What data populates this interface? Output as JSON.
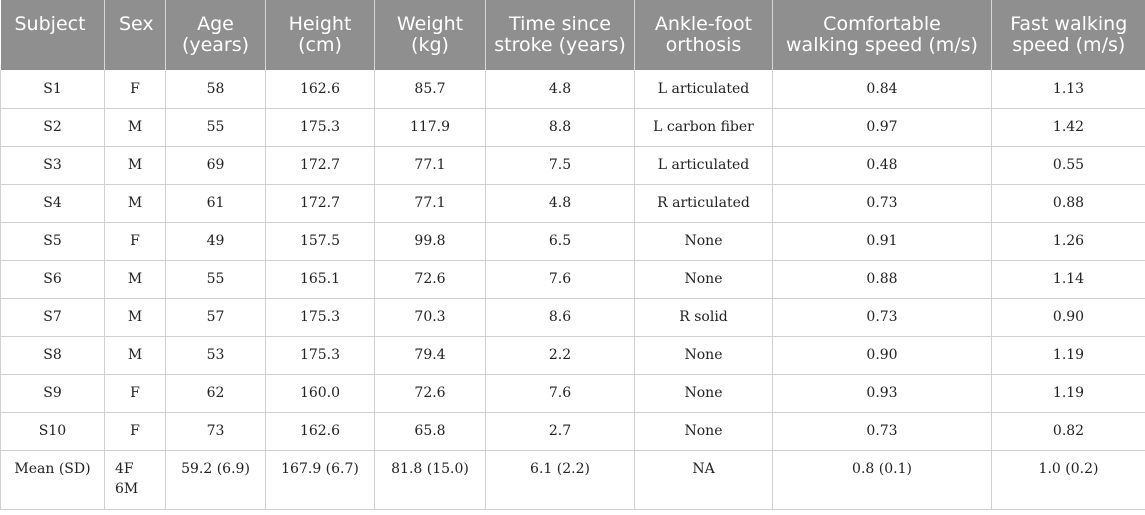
{
  "headers": [
    {
      "line1": "Subject",
      "line2": ""
    },
    {
      "line1": "Sex",
      "line2": ""
    },
    {
      "line1": "Age",
      "line2": "(years)"
    },
    {
      "line1": "Height",
      "line2": "(cm)"
    },
    {
      "line1": "Weight",
      "line2": "(kg)"
    },
    {
      "line1": "Time since",
      "line2": "stroke (years)"
    },
    {
      "line1": "Ankle-foot",
      "line2": "orthosis"
    },
    {
      "line1": "Comfortable",
      "line2": "walking speed (m/s)"
    },
    {
      "line1": "Fast walking",
      "line2": "speed (m/s)"
    }
  ],
  "rows": [
    [
      "S1",
      "F",
      "58",
      "162.6",
      "85.7",
      "4.8",
      "L articulated",
      "0.84",
      "1.13"
    ],
    [
      "S2",
      "M",
      "55",
      "175.3",
      "117.9",
      "8.8",
      "L carbon fiber",
      "0.97",
      "1.42"
    ],
    [
      "S3",
      "M",
      "69",
      "172.7",
      "77.1",
      "7.5",
      "L articulated",
      "0.48",
      "0.55"
    ],
    [
      "S4",
      "M",
      "61",
      "172.7",
      "77.1",
      "4.8",
      "R articulated",
      "0.73",
      "0.88"
    ],
    [
      "S5",
      "F",
      "49",
      "157.5",
      "99.8",
      "6.5",
      "None",
      "0.91",
      "1.26"
    ],
    [
      "S6",
      "M",
      "55",
      "165.1",
      "72.6",
      "7.6",
      "None",
      "0.88",
      "1.14"
    ],
    [
      "S7",
      "M",
      "57",
      "175.3",
      "70.3",
      "8.6",
      "R solid",
      "0.73",
      "0.90"
    ],
    [
      "S8",
      "M",
      "53",
      "175.3",
      "79.4",
      "2.2",
      "None",
      "0.90",
      "1.19"
    ],
    [
      "S9",
      "F",
      "62",
      "160.0",
      "72.6",
      "7.6",
      "None",
      "0.93",
      "1.19"
    ],
    [
      "S10",
      "F",
      "73",
      "162.6",
      "65.8",
      "2.7",
      "None",
      "0.73",
      "0.82"
    ]
  ],
  "mean_row": {
    "subject": "Mean (SD)",
    "sex_line1": "4F",
    "sex_line2": "6M",
    "age": "59.2 (6.9)",
    "height": "167.9 (6.7)",
    "weight": "81.8 (15.0)",
    "time_since_stroke": "6.1 (2.2)",
    "orthosis": "NA",
    "comfortable_speed": "0.8 (0.1)",
    "fast_speed": "1.0 (0.2)"
  }
}
